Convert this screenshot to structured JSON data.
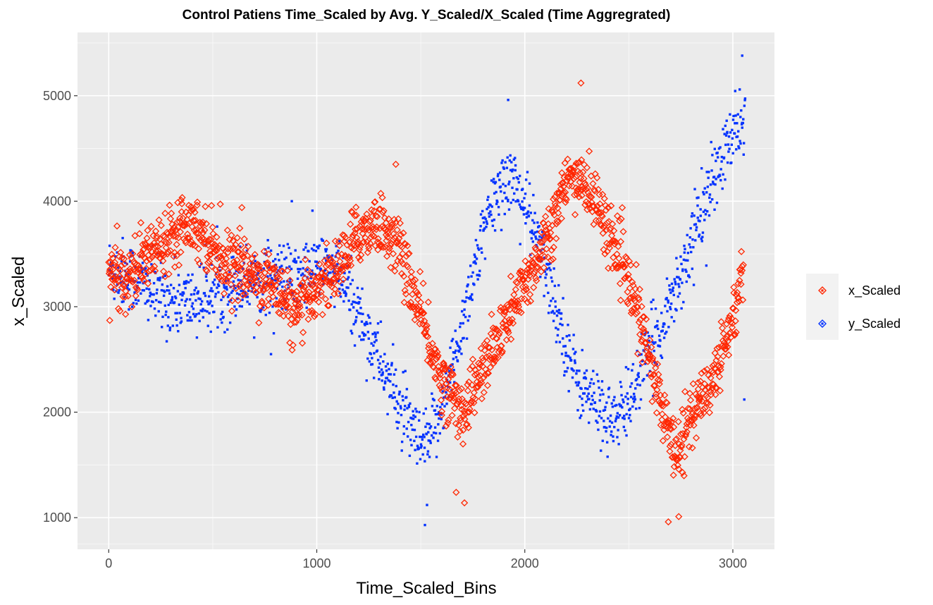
{
  "chart_data": {
    "type": "scatter",
    "title": "Control Patiens Time_Scaled by Avg. Y_Scaled/X_Scaled (Time Aggregrated)",
    "xlabel": "Time_Scaled_Bins",
    "ylabel": "x_Scaled",
    "xlim": [
      -150,
      3200
    ],
    "ylim": [
      700,
      5600
    ],
    "x_ticks": [
      0,
      1000,
      2000,
      3000
    ],
    "x_tick_labels": [
      "0",
      "1000",
      "2000",
      "3000"
    ],
    "y_ticks": [
      1000,
      2000,
      3000,
      4000,
      5000
    ],
    "y_tick_labels": [
      "1000",
      "2000",
      "3000",
      "4000",
      "5000"
    ],
    "grid": true,
    "legend_position": "right",
    "panel_background": "#ebebeb",
    "series": [
      {
        "name": "x_Scaled",
        "color": "#ff2600",
        "marker": "open-diamond",
        "x_range": [
          0,
          3050
        ],
        "x_step": 2,
        "trend": [
          [
            0,
            3300
          ],
          [
            100,
            3300
          ],
          [
            200,
            3500
          ],
          [
            300,
            3700
          ],
          [
            380,
            3850
          ],
          [
            450,
            3700
          ],
          [
            550,
            3450
          ],
          [
            700,
            3300
          ],
          [
            800,
            3200
          ],
          [
            900,
            2900
          ],
          [
            1000,
            3200
          ],
          [
            1100,
            3350
          ],
          [
            1200,
            3700
          ],
          [
            1300,
            3800
          ],
          [
            1400,
            3550
          ],
          [
            1500,
            2900
          ],
          [
            1600,
            2300
          ],
          [
            1700,
            2000
          ],
          [
            1800,
            2400
          ],
          [
            1900,
            2800
          ],
          [
            2000,
            3200
          ],
          [
            2100,
            3650
          ],
          [
            2200,
            4150
          ],
          [
            2260,
            4250
          ],
          [
            2350,
            3950
          ],
          [
            2450,
            3500
          ],
          [
            2550,
            2900
          ],
          [
            2650,
            2100
          ],
          [
            2720,
            1650
          ],
          [
            2800,
            1950
          ],
          [
            2900,
            2300
          ],
          [
            3000,
            2900
          ],
          [
            3050,
            3350
          ]
        ],
        "spread": 260,
        "outliers": [
          {
            "x": 2270,
            "y": 5120
          },
          {
            "x": 1380,
            "y": 4350
          },
          {
            "x": 1710,
            "y": 1140
          },
          {
            "x": 2690,
            "y": 960
          },
          {
            "x": 2740,
            "y": 1010
          },
          {
            "x": 1670,
            "y": 1240
          },
          {
            "x": 5,
            "y": 2870
          },
          {
            "x": 640,
            "y": 3940
          }
        ]
      },
      {
        "name": "y_Scaled",
        "color": "#0433ff",
        "marker": "small-square",
        "x_range": [
          0,
          3060
        ],
        "x_step": 2,
        "trend": [
          [
            0,
            3350
          ],
          [
            100,
            3300
          ],
          [
            200,
            3150
          ],
          [
            300,
            3050
          ],
          [
            400,
            3050
          ],
          [
            550,
            3150
          ],
          [
            650,
            3250
          ],
          [
            800,
            3300
          ],
          [
            900,
            3250
          ],
          [
            1000,
            3400
          ],
          [
            1100,
            3300
          ],
          [
            1200,
            2950
          ],
          [
            1300,
            2500
          ],
          [
            1400,
            2050
          ],
          [
            1500,
            1650
          ],
          [
            1550,
            1750
          ],
          [
            1650,
            2400
          ],
          [
            1750,
            3300
          ],
          [
            1850,
            4000
          ],
          [
            1920,
            4250
          ],
          [
            1960,
            4150
          ],
          [
            2050,
            3700
          ],
          [
            2150,
            3000
          ],
          [
            2250,
            2300
          ],
          [
            2350,
            2050
          ],
          [
            2450,
            1900
          ],
          [
            2550,
            2350
          ],
          [
            2650,
            2800
          ],
          [
            2750,
            3300
          ],
          [
            2850,
            3900
          ],
          [
            2950,
            4400
          ],
          [
            3000,
            4600
          ],
          [
            3050,
            4800
          ]
        ],
        "spread": 300,
        "outliers": [
          {
            "x": 1920,
            "y": 4960
          },
          {
            "x": 3045,
            "y": 5380
          },
          {
            "x": 1520,
            "y": 930
          },
          {
            "x": 1530,
            "y": 1120
          },
          {
            "x": 3055,
            "y": 2120
          },
          {
            "x": 780,
            "y": 2550
          },
          {
            "x": 880,
            "y": 4000
          }
        ]
      }
    ]
  }
}
